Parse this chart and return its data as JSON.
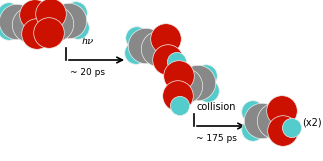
{
  "bg_color": "#ffffff",
  "C_color": "#888888",
  "O_color": "#cc1100",
  "H_color": "#55cccc",
  "bond_color": "#444444",
  "arrow1_text_line1": "hν",
  "arrow1_text_line2": "~ 20 ps",
  "arrow2_text_line1": "collision",
  "arrow2_text_line2": "~ 175 ps",
  "x2_label": "(x2)",
  "figsize": [
    3.23,
    1.61
  ],
  "dpi": 100,
  "C_r": 0.11,
  "O_r": 0.095,
  "H_r": 0.07,
  "bond_lw": 1.4
}
